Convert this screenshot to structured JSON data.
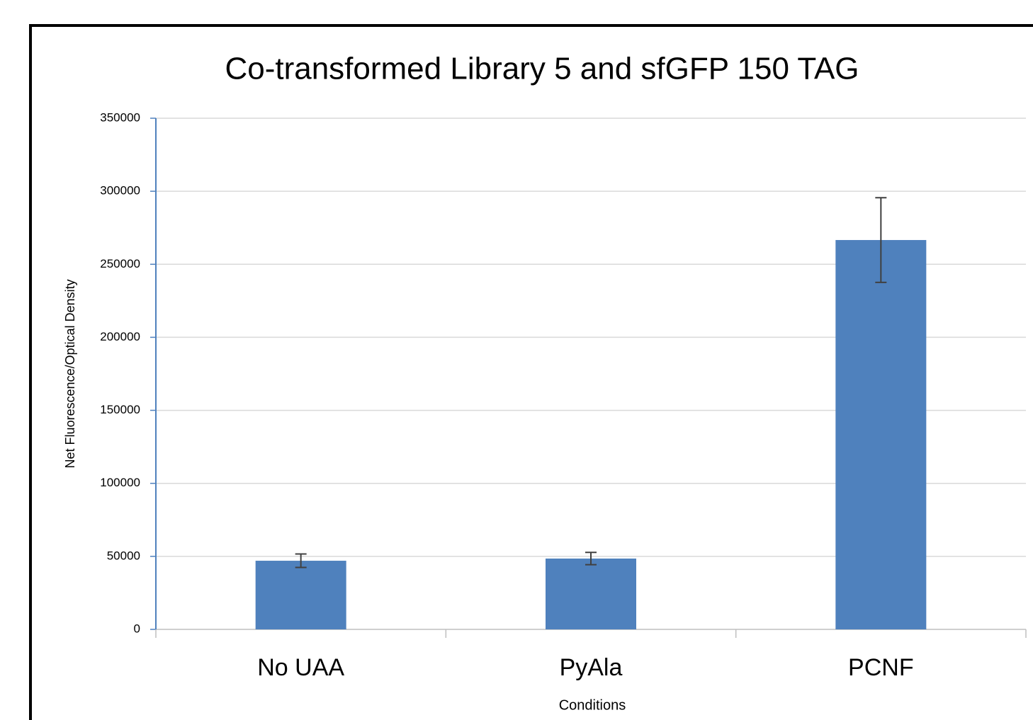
{
  "chart_data": {
    "type": "bar",
    "title": "Co-transformed Library 5 and sfGFP 150 TAG",
    "xlabel": "Conditions",
    "ylabel": "Net Fluorescence/Optical Density",
    "categories": [
      "No UAA",
      "PyAla",
      "PCNF"
    ],
    "values": [
      47000,
      48500,
      266600
    ],
    "errors": [
      4600,
      4200,
      29000
    ],
    "color": "#4f81bd",
    "ylim": [
      0,
      350000
    ],
    "yticks": [
      0,
      50000,
      100000,
      150000,
      200000,
      250000,
      300000,
      350000
    ],
    "grid": true
  }
}
